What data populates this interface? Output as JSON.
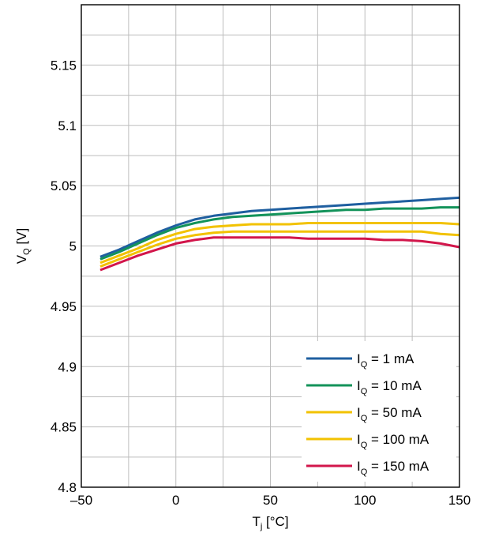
{
  "chart_data": {
    "type": "line",
    "title": "",
    "xlabel": {
      "main": "T",
      "sub": "j",
      "unit": " [°C]"
    },
    "ylabel": {
      "main": "V",
      "sub": "Q",
      "unit": " [V]"
    },
    "xlim": [
      -50,
      150
    ],
    "ylim": [
      4.8,
      5.2
    ],
    "x_ticks": [
      -50,
      0,
      50,
      100,
      150
    ],
    "x_tick_labels": [
      "–50",
      "0",
      "50",
      "100",
      "150"
    ],
    "y_ticks": [
      4.8,
      4.85,
      4.9,
      4.95,
      5,
      5.05,
      5.1,
      5.15
    ],
    "y_tick_labels": [
      "4.8",
      "4.85",
      "4.9",
      "4.95",
      "5",
      "5.05",
      "5.1",
      "5.15"
    ],
    "grid": true,
    "legend_position": "bottom-right",
    "x": [
      -40,
      -30,
      -20,
      -10,
      0,
      10,
      20,
      30,
      40,
      50,
      60,
      70,
      80,
      90,
      100,
      110,
      120,
      130,
      140,
      150
    ],
    "series": [
      {
        "name": "I",
        "sub": "Q",
        "suffix": " = 1 mA",
        "color": "#1f5fa0",
        "values": [
          4.991,
          4.997,
          5.004,
          5.011,
          5.017,
          5.022,
          5.025,
          5.027,
          5.029,
          5.03,
          5.031,
          5.032,
          5.033,
          5.034,
          5.035,
          5.036,
          5.037,
          5.038,
          5.039,
          5.04
        ]
      },
      {
        "name": "I",
        "sub": "Q",
        "suffix": " = 10 mA",
        "color": "#13935a",
        "values": [
          4.989,
          4.995,
          5.002,
          5.009,
          5.015,
          5.019,
          5.022,
          5.024,
          5.025,
          5.026,
          5.027,
          5.028,
          5.029,
          5.03,
          5.03,
          5.031,
          5.031,
          5.031,
          5.032,
          5.032
        ]
      },
      {
        "name": "I",
        "sub": "Q",
        "suffix": " = 50 mA",
        "color": "#f2c200",
        "values": [
          4.986,
          4.992,
          4.998,
          5.005,
          5.01,
          5.014,
          5.016,
          5.017,
          5.018,
          5.018,
          5.018,
          5.019,
          5.019,
          5.019,
          5.019,
          5.019,
          5.019,
          5.019,
          5.019,
          5.018
        ]
      },
      {
        "name": "I",
        "sub": "Q",
        "suffix": " = 100 mA",
        "color": "#f2c200",
        "values": [
          4.983,
          4.989,
          4.995,
          5.001,
          5.006,
          5.009,
          5.011,
          5.012,
          5.012,
          5.012,
          5.012,
          5.012,
          5.012,
          5.012,
          5.012,
          5.012,
          5.012,
          5.012,
          5.01,
          5.009
        ]
      },
      {
        "name": "I",
        "sub": "Q",
        "suffix": " = 150 mA",
        "color": "#d2164b",
        "values": [
          4.98,
          4.986,
          4.992,
          4.997,
          5.002,
          5.005,
          5.007,
          5.007,
          5.007,
          5.007,
          5.007,
          5.006,
          5.006,
          5.006,
          5.006,
          5.005,
          5.005,
          5.004,
          5.002,
          4.999
        ]
      }
    ]
  }
}
